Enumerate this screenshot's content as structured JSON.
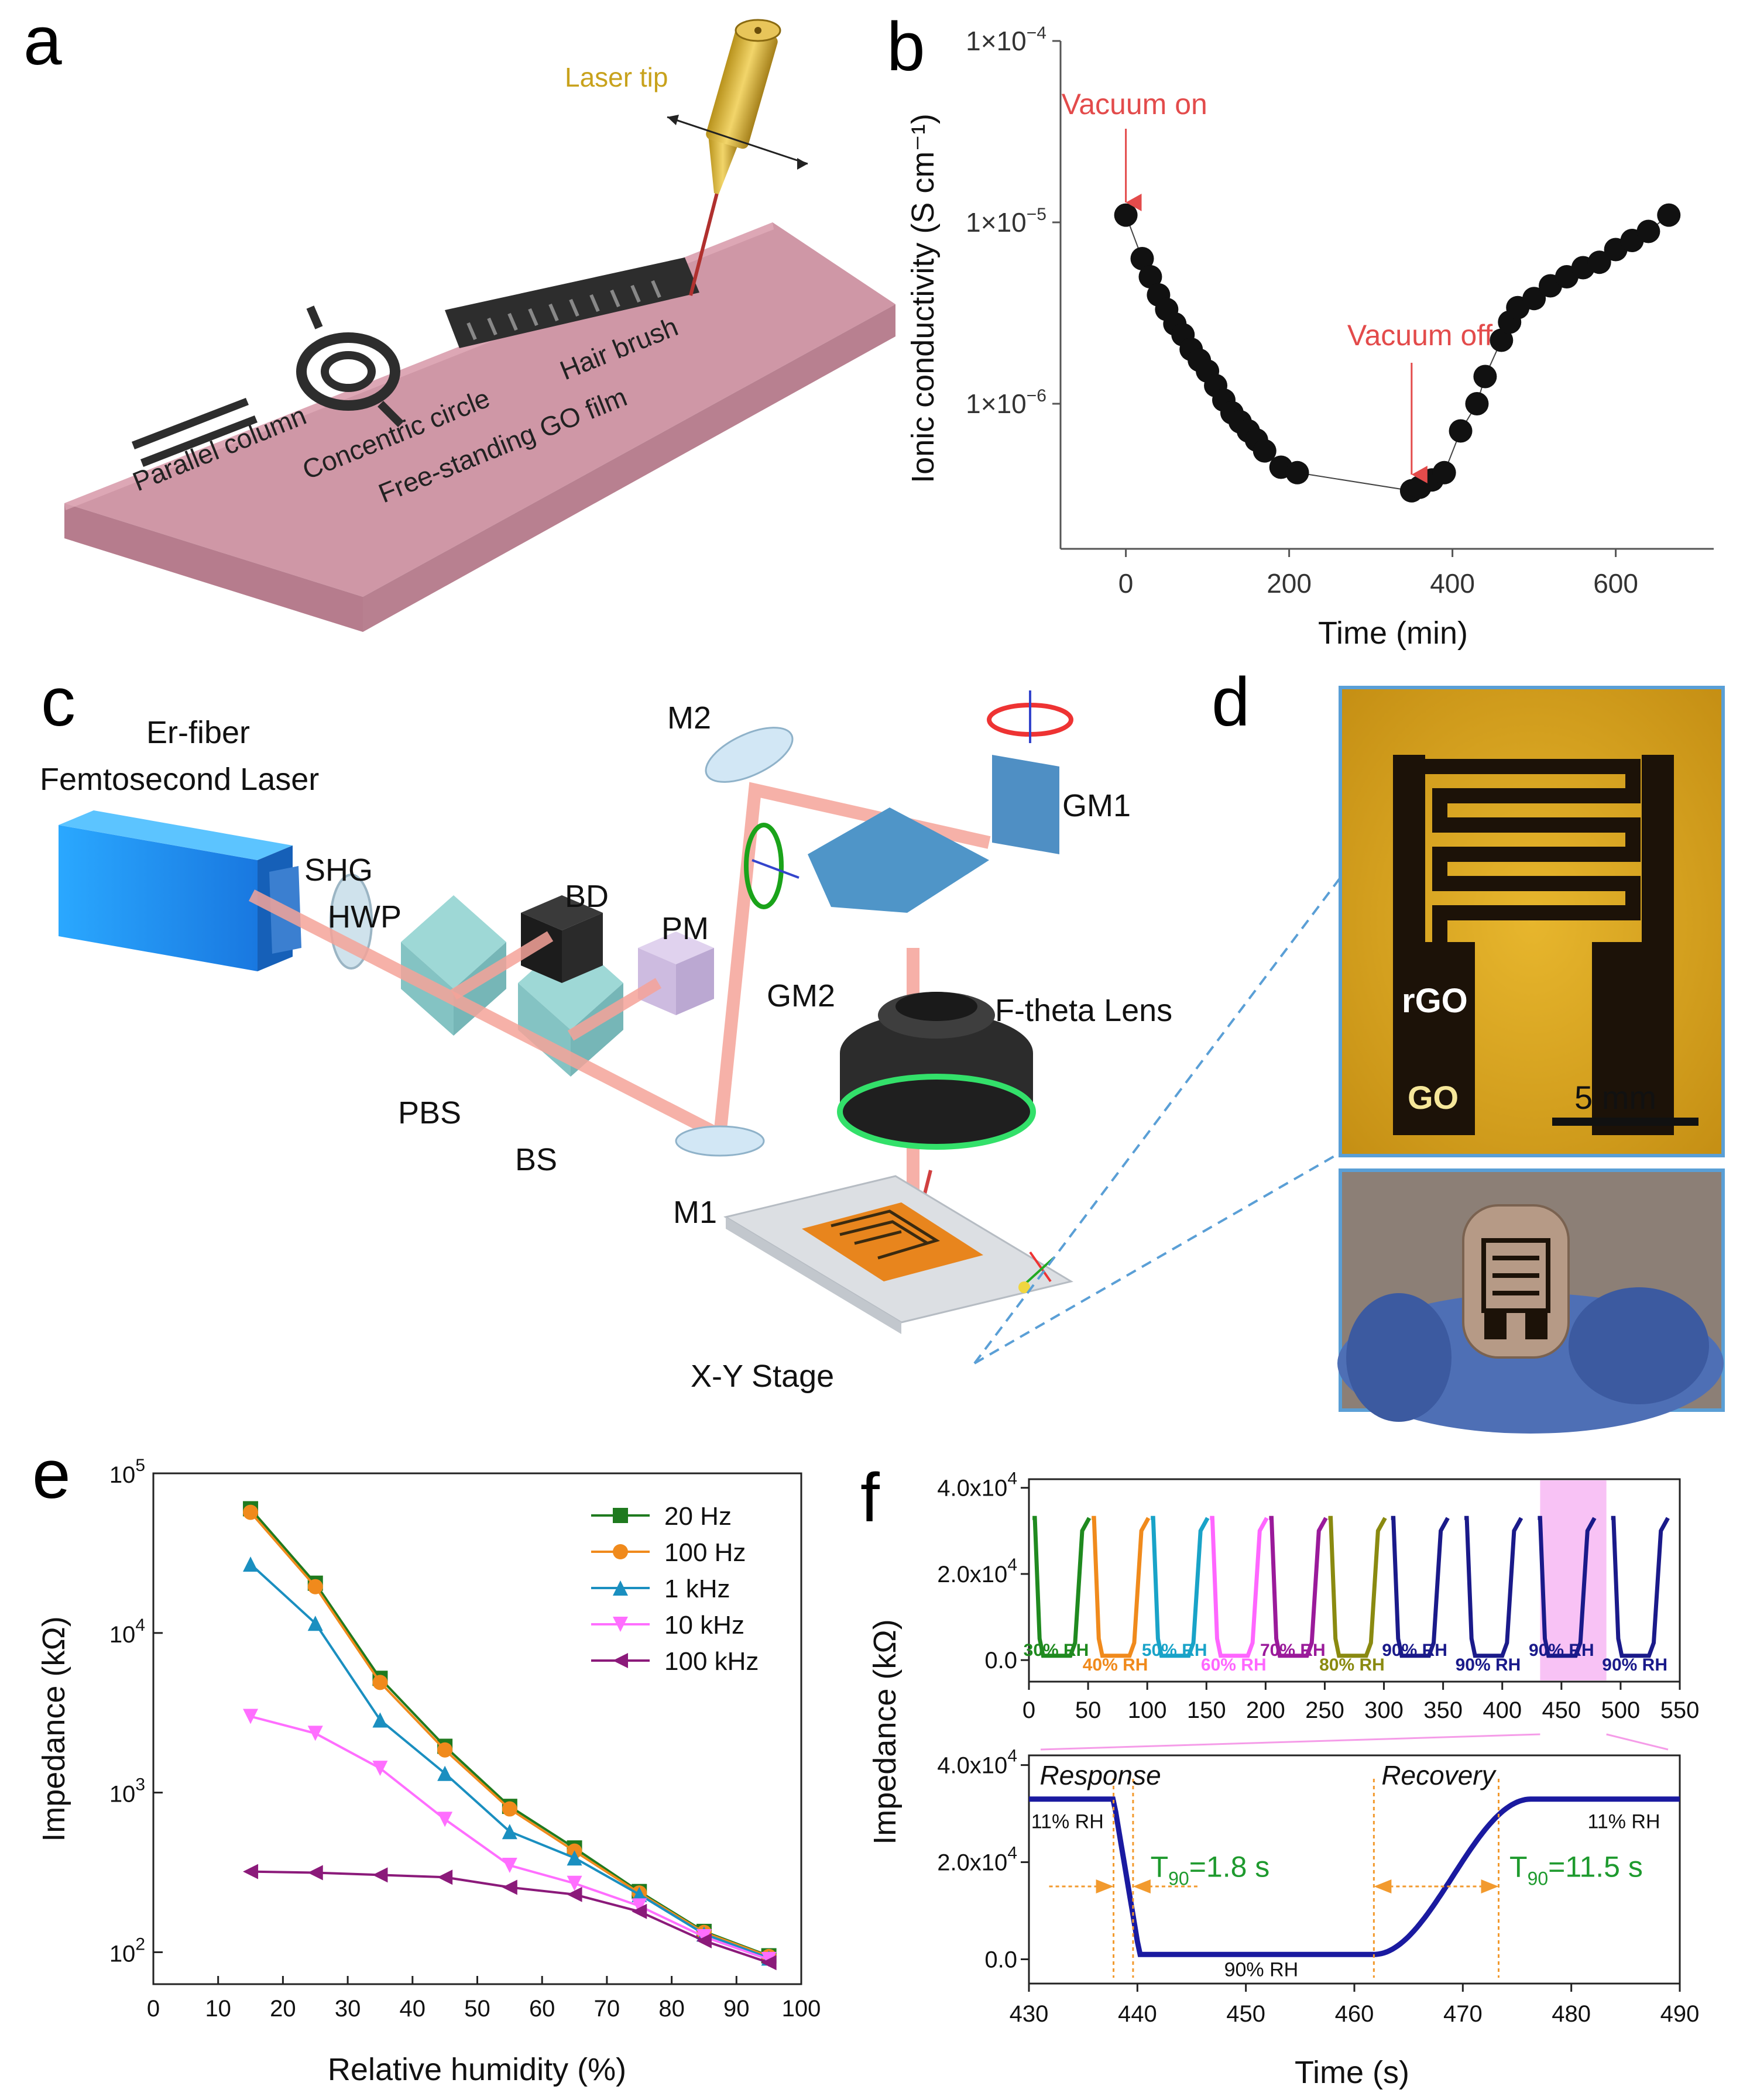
{
  "panel_labels": {
    "a": "a",
    "b": "b",
    "c": "c",
    "d": "d",
    "e": "e",
    "f": "f"
  },
  "panel_a": {
    "laser_tip": "Laser tip",
    "hair_brush": "Hair brush",
    "concentric_circle": "Concentric circle",
    "parallel_column": "Parallel column",
    "film": "Free-standing GO film"
  },
  "panel_c": {
    "laser_line1": "Er-fiber",
    "laser_line2": "Femtosecond Laser",
    "shg": "SHG",
    "hwp": "HWP",
    "bd": "BD",
    "pm": "PM",
    "pbs": "PBS",
    "bs": "BS",
    "m1": "M1",
    "m2": "M2",
    "gm1": "GM1",
    "gm2": "GM2",
    "ftheta": "F-theta Lens",
    "stage": "X-Y Stage"
  },
  "panel_d": {
    "rgo": "rGO",
    "go": "GO",
    "scale": "5 mm"
  },
  "chart_data": [
    {
      "id": "b",
      "type": "scatter",
      "xlabel": "Time (min)",
      "ylabel": "Ionic conductivity (S cm⁻¹)",
      "xlim": [
        -80,
        720
      ],
      "ylim_log10": [
        -6.8,
        -4
      ],
      "xticks": [
        0,
        200,
        400,
        600
      ],
      "yticks": [
        {
          "log10": -4,
          "base": "1×10",
          "exp": "−4"
        },
        {
          "log10": -5,
          "base": "1×10",
          "exp": "−5"
        },
        {
          "log10": -6,
          "base": "1×10",
          "exp": "−6"
        }
      ],
      "annotations": [
        {
          "text": "Vacuum on",
          "x": 0,
          "log10": -5.0
        },
        {
          "text": "Vacuum off",
          "x": 350,
          "log10": -6.5
        }
      ],
      "points": [
        [
          0,
          -4.96
        ],
        [
          20,
          -5.2
        ],
        [
          30,
          -5.3
        ],
        [
          40,
          -5.4
        ],
        [
          50,
          -5.48
        ],
        [
          60,
          -5.56
        ],
        [
          70,
          -5.62
        ],
        [
          80,
          -5.7
        ],
        [
          90,
          -5.76
        ],
        [
          100,
          -5.82
        ],
        [
          110,
          -5.9
        ],
        [
          120,
          -5.98
        ],
        [
          130,
          -6.05
        ],
        [
          140,
          -6.1
        ],
        [
          150,
          -6.15
        ],
        [
          160,
          -6.2
        ],
        [
          170,
          -6.26
        ],
        [
          190,
          -6.35
        ],
        [
          210,
          -6.38
        ],
        [
          350,
          -6.48
        ],
        [
          360,
          -6.46
        ],
        [
          375,
          -6.42
        ],
        [
          390,
          -6.38
        ],
        [
          410,
          -6.15
        ],
        [
          430,
          -6.0
        ],
        [
          440,
          -5.85
        ],
        [
          460,
          -5.65
        ],
        [
          470,
          -5.55
        ],
        [
          480,
          -5.47
        ],
        [
          500,
          -5.42
        ],
        [
          520,
          -5.35
        ],
        [
          540,
          -5.3
        ],
        [
          560,
          -5.25
        ],
        [
          580,
          -5.22
        ],
        [
          600,
          -5.15
        ],
        [
          620,
          -5.1
        ],
        [
          640,
          -5.05
        ],
        [
          665,
          -4.96
        ]
      ]
    },
    {
      "id": "e",
      "type": "line",
      "xlabel": "Relative humidity (%)",
      "ylabel": "Impedance (kΩ)",
      "xlim": [
        0,
        100
      ],
      "ylim_log10": [
        1.8,
        5
      ],
      "xticks": [
        0,
        10,
        20,
        30,
        40,
        50,
        60,
        70,
        80,
        90,
        100
      ],
      "yticks": [
        {
          "log10": 2,
          "base": "10",
          "exp": "2"
        },
        {
          "log10": 3,
          "base": "10",
          "exp": "3"
        },
        {
          "log10": 4,
          "base": "10",
          "exp": "4"
        },
        {
          "log10": 5,
          "base": "10",
          "exp": "5"
        }
      ],
      "x": [
        15,
        25,
        35,
        45,
        55,
        65,
        75,
        85,
        95
      ],
      "series": [
        {
          "name": "20 Hz",
          "color": "#1f7a1f",
          "marker": "square",
          "values": [
            60000,
            20500,
            5200,
            1950,
            820,
            450,
            240,
            135,
            95
          ]
        },
        {
          "name": "100 Hz",
          "color": "#f08a1c",
          "marker": "circle",
          "values": [
            57000,
            19500,
            4900,
            1850,
            790,
            430,
            235,
            133,
            94
          ]
        },
        {
          "name": "1 kHz",
          "color": "#1a8fc0",
          "marker": "triangle-up",
          "values": [
            27000,
            11500,
            2850,
            1320,
            570,
            390,
            230,
            130,
            92
          ]
        },
        {
          "name": "10 kHz",
          "color": "#ff6eff",
          "marker": "triangle-down",
          "values": [
            3000,
            2350,
            1420,
            680,
            350,
            270,
            195,
            125,
            90
          ]
        },
        {
          "name": "100 kHz",
          "color": "#8b1a7a",
          "marker": "triangle-left",
          "values": [
            320,
            315,
            305,
            295,
            255,
            230,
            180,
            118,
            86
          ]
        }
      ]
    },
    {
      "id": "f_top",
      "type": "line",
      "ylabel": "Impedance (kΩ)",
      "xlim": [
        0,
        550
      ],
      "ylim": [
        -5000,
        42000
      ],
      "xticks": [
        0,
        50,
        100,
        150,
        200,
        250,
        300,
        350,
        400,
        450,
        500,
        550
      ],
      "yticks": [
        {
          "value": 40000,
          "label": "4.0x10",
          "exp": "4"
        },
        {
          "value": 20000,
          "label": "2.0x10",
          "exp": "4"
        },
        {
          "value": 0,
          "label": "0.0",
          "exp": ""
        }
      ],
      "highlight": [
        432,
        488
      ],
      "cycles": [
        {
          "start": 5,
          "color": "#1f8a1f",
          "label": "30% RH"
        },
        {
          "start": 55,
          "color": "#f08a1c",
          "label": "40% RH"
        },
        {
          "start": 105,
          "color": "#19a3c8",
          "label": "50% RH"
        },
        {
          "start": 155,
          "color": "#ff66ff",
          "label": "60% RH"
        },
        {
          "start": 205,
          "color": "#9a1a9a",
          "label": "70% RH"
        },
        {
          "start": 255,
          "color": "#8a8a10",
          "label": "80% RH"
        },
        {
          "start": 308,
          "color": "#1a1a8a",
          "label": "90% RH"
        },
        {
          "start": 370,
          "color": "#1a1a8a",
          "label": "90% RH"
        },
        {
          "start": 432,
          "color": "#1a1a8a",
          "label": "90% RH"
        },
        {
          "start": 494,
          "color": "#1a1a8a",
          "label": "90% RH"
        }
      ],
      "high_value": 33000,
      "low_value": 1000
    },
    {
      "id": "f_bottom",
      "type": "line",
      "xlabel": "Time (s)",
      "xlim": [
        430,
        490
      ],
      "ylim": [
        -5000,
        42000
      ],
      "xticks": [
        430,
        440,
        450,
        460,
        470,
        480,
        490
      ],
      "yticks": [
        {
          "value": 40000,
          "label": "4.0x10",
          "exp": "4"
        },
        {
          "value": 20000,
          "label": "2.0x10",
          "exp": "4"
        },
        {
          "value": 0,
          "label": "0.0",
          "exp": ""
        }
      ],
      "response": {
        "label": "Response",
        "t90": "1.8 s",
        "start": 437.8,
        "end": 439.6
      },
      "recovery": {
        "label": "Recovery",
        "t90": "11.5 s",
        "start": 461.8,
        "end": 473.3
      },
      "rh_high": "11% RH",
      "rh_low": "90% RH",
      "high_value": 33000,
      "low_value": 1000
    }
  ]
}
